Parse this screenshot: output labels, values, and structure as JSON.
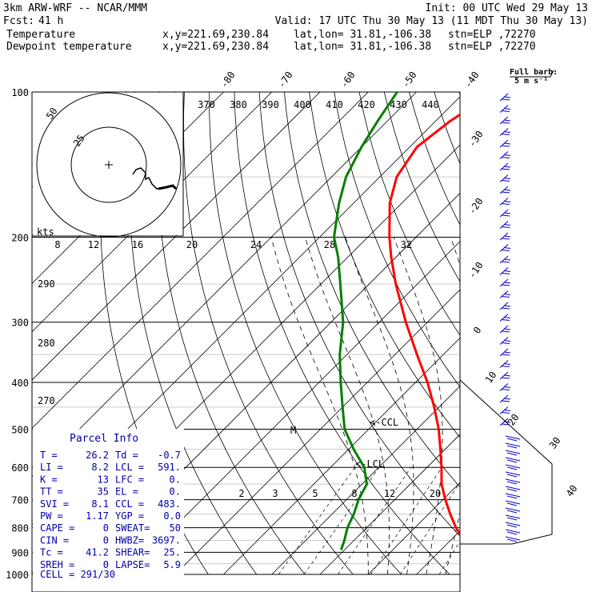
{
  "header": {
    "model_line": "3km ARW-WRF -- NCAR/MMM",
    "fcst_label": "Fcst:",
    "fcst_value": "41 h",
    "init_line": "Init: 00 UTC Wed 29 May 13",
    "valid_line": "Valid: 17 UTC Thu 30 May 13 (11 MDT Thu 30 May 13)",
    "temp_legend": {
      "name": "Temperature",
      "xy": "x,y=221.69,230.84",
      "latlon": "lat,lon= 31.81,-106.38",
      "stn": "stn=ELP ,72270",
      "color": "#ff0000"
    },
    "dew_legend": {
      "name": "Dewpoint temperature",
      "xy": "x,y=221.69,230.84",
      "latlon": "lat,lon= 31.81,-106.38",
      "stn": "stn=ELP ,72270",
      "color": "#008000"
    }
  },
  "barb_key": {
    "line1": "Full barb:",
    "line2": "5 m s⁻¹"
  },
  "hodograph": {
    "units": "kts",
    "ring_labels": [
      "50",
      "25"
    ]
  },
  "parcel_info": {
    "title": "Parcel Info",
    "rows": [
      [
        "T  =",
        "26.2",
        "Td =",
        "-0.7"
      ],
      [
        "LI =",
        "8.2",
        "LCL =",
        "591."
      ],
      [
        "K  =",
        "13",
        "LFC =",
        "0."
      ],
      [
        "TT =",
        "35",
        "EL  =",
        "0."
      ],
      [
        "SVI =",
        "8.1",
        "CCL =",
        "483."
      ],
      [
        "PW =",
        "1.17",
        "YGP =",
        "0.0"
      ],
      [
        "CAPE =",
        "0",
        "SWEAT=",
        "50"
      ],
      [
        "CIN =",
        "0",
        "HWBZ=",
        "3697."
      ],
      [
        "Tc =",
        "41.2",
        "SHEAR=",
        "25."
      ],
      [
        "SREH =",
        "0",
        "LAPSE=",
        "5.9"
      ]
    ],
    "cell": "CELL = 291/30"
  },
  "annotations": {
    "ccl": "<-CCL",
    "lcl": "<-LCL",
    "m": "M"
  },
  "chart_data": {
    "type": "line",
    "title": "",
    "ylabel": "",
    "pressure_ticks": [
      100,
      200,
      300,
      400,
      500,
      600,
      700,
      800,
      900,
      1000
    ],
    "isotherm_labels_top": [
      "-80",
      "-70",
      "-60",
      "-50",
      "-40"
    ],
    "isotherm_labels_right": [
      "-30",
      "-20",
      "-10",
      "0",
      "10",
      "20",
      "30",
      "40"
    ],
    "theta_labels": [
      "370",
      "380",
      "390",
      "400",
      "410",
      "420",
      "430",
      "440"
    ],
    "theta_left_labels": [
      "290",
      "280",
      "270"
    ],
    "mixing_ratio_labels": [
      "2",
      "3",
      "5",
      "8",
      "12",
      "20"
    ],
    "mixing_ratio_upper_labels": [
      "8",
      "12",
      "16",
      "20",
      "24",
      "28",
      "32"
    ],
    "series": [
      {
        "name": "Temperature",
        "color": "#ff0000",
        "points": [
          [
            890,
            26.2
          ],
          [
            850,
            22.8
          ],
          [
            800,
            18.5
          ],
          [
            750,
            14.5
          ],
          [
            700,
            10.5
          ],
          [
            650,
            6.5
          ],
          [
            600,
            3.0
          ],
          [
            550,
            -1.0
          ],
          [
            500,
            -5.5
          ],
          [
            450,
            -11.0
          ],
          [
            400,
            -17.5
          ],
          [
            350,
            -25.5
          ],
          [
            300,
            -34.5
          ],
          [
            250,
            -44.5
          ],
          [
            220,
            -51.0
          ],
          [
            200,
            -55.5
          ],
          [
            170,
            -62.5
          ],
          [
            150,
            -66.5
          ],
          [
            130,
            -68.5
          ],
          [
            115,
            -67.0
          ],
          [
            100,
            -64.0
          ]
        ]
      },
      {
        "name": "Dewpoint temperature",
        "color": "#008000",
        "points": [
          [
            890,
            -0.7
          ],
          [
            850,
            -2.0
          ],
          [
            800,
            -4.0
          ],
          [
            750,
            -5.5
          ],
          [
            700,
            -7.5
          ],
          [
            650,
            -9.0
          ],
          [
            600,
            -13.0
          ],
          [
            550,
            -19.0
          ],
          [
            500,
            -25.0
          ],
          [
            450,
            -30.0
          ],
          [
            400,
            -35.5
          ],
          [
            350,
            -41.5
          ],
          [
            300,
            -47.5
          ],
          [
            250,
            -56.0
          ],
          [
            220,
            -62.0
          ],
          [
            200,
            -67.0
          ],
          [
            170,
            -73.0
          ],
          [
            150,
            -77.0
          ],
          [
            130,
            -80.0
          ],
          [
            115,
            -82.0
          ],
          [
            100,
            -84.0
          ]
        ]
      }
    ]
  }
}
